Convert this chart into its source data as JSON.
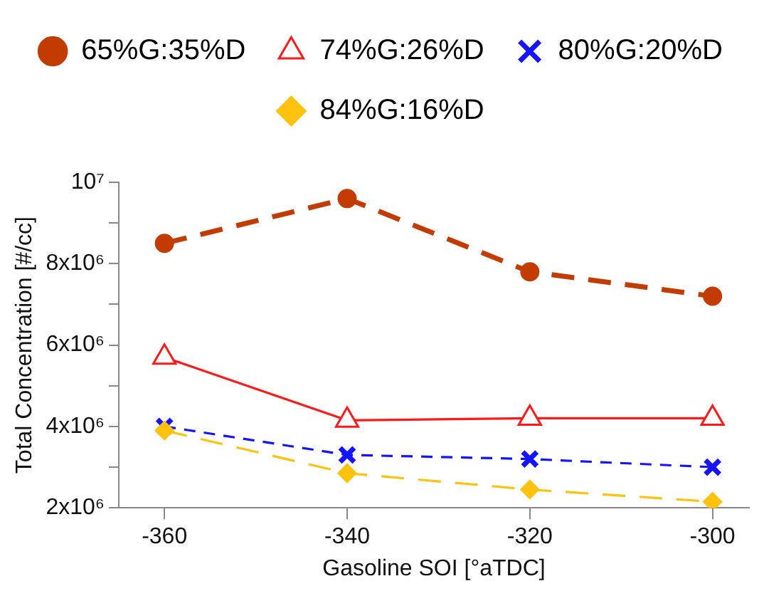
{
  "chart_data": {
    "type": "line",
    "xlabel": "Gasoline SOI [°aTDC]",
    "ylabel": "Total Concentration [#/cc]",
    "x": [
      -360,
      -340,
      -320,
      -300
    ],
    "series": [
      {
        "name": "65%G:35%D",
        "color": "#c23b00",
        "marker": "circle",
        "line_style": "dashed",
        "values": [
          8500000,
          9600000,
          7800000,
          7200000
        ]
      },
      {
        "name": "74%G:26%D",
        "color": "#ff1a1a",
        "marker": "triangle",
        "line_style": "solid",
        "values": [
          5700000,
          4150000,
          4200000,
          4200000
        ]
      },
      {
        "name": "80%G:20%D",
        "color": "#1414ff",
        "marker": "cross",
        "line_style": "dashed",
        "values": [
          4000000,
          3300000,
          3200000,
          3000000
        ]
      },
      {
        "name": "84%G:16%D",
        "color": "#ffc20e",
        "marker": "diamond",
        "line_style": "dashed",
        "values": [
          3900000,
          2850000,
          2450000,
          2150000
        ]
      }
    ],
    "xlim": [
      -365,
      -296
    ],
    "xticks": [
      -360,
      -340,
      -320,
      -300
    ],
    "ylim": [
      2000000,
      10000000
    ],
    "yticks": [
      {
        "value": 2000000,
        "label": "2x10⁶"
      },
      {
        "value": 3000000,
        "label": null
      },
      {
        "value": 4000000,
        "label": "4x10⁶"
      },
      {
        "value": 5000000,
        "label": null
      },
      {
        "value": 6000000,
        "label": "6x10⁶"
      },
      {
        "value": 7000000,
        "label": null
      },
      {
        "value": 8000000,
        "label": "8x10⁶"
      },
      {
        "value": 9000000,
        "label": null
      },
      {
        "value": 10000000,
        "label": "10⁷"
      }
    ],
    "legend": "top",
    "grid": false
  }
}
